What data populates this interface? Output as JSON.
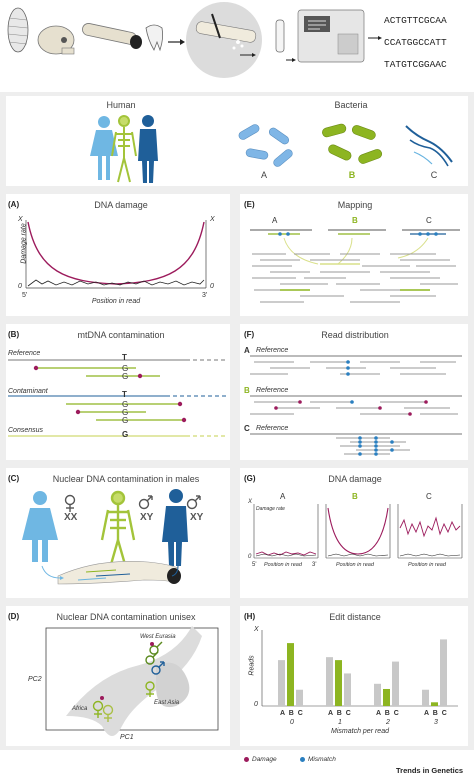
{
  "sequences": [
    "ACTGTTCGCAA",
    "CCATGGCCATT",
    "TATGTCGGAAC"
  ],
  "top": {
    "human_label": "Human",
    "bacteria_label": "Bacteria",
    "bact_a": "A",
    "bact_b": "B",
    "bact_c": "C"
  },
  "panelA": {
    "letter": "(A)",
    "title": "DNA damage",
    "ylabel": "Damage rate",
    "xlabel": "Position in read",
    "x_top_left": "X",
    "x_top_right": "X",
    "zero_left": "0",
    "zero_right": "0",
    "five": "5'",
    "three": "3'"
  },
  "panelE": {
    "letter": "(E)",
    "title": "Mapping",
    "a": "A",
    "b": "B",
    "c": "C"
  },
  "panelB": {
    "letter": "(B)",
    "title": "mtDNA contamination",
    "reference": "Reference",
    "contaminant": "Contaminant",
    "consensus": "Consensus",
    "bases": [
      "T",
      "G",
      "G",
      "T",
      "G",
      "G",
      "G",
      "G"
    ]
  },
  "panelF": {
    "letter": "(F)",
    "title": "Read distribution",
    "a": "A",
    "b": "B",
    "c": "C",
    "reference": "Reference"
  },
  "panelC": {
    "letter": "(C)",
    "title": "Nuclear DNA contamination in males",
    "xx": "XX",
    "xy1": "XY",
    "xy2": "XY"
  },
  "panelG": {
    "letter": "(G)",
    "title": "DNA damage",
    "a": "A",
    "b": "B",
    "c": "C",
    "ylabel": "Damage rate",
    "xlabel": "Position in read",
    "x": "X",
    "zero": "0",
    "five": "5'",
    "three": "3'"
  },
  "panelD": {
    "letter": "(D)",
    "title": "Nuclear DNA contamination unisex",
    "west_eurasia": "West Eurasia",
    "africa": "Africa",
    "east_asia": "East Asia",
    "pc1": "PC1",
    "pc2": "PC2"
  },
  "panelH": {
    "letter": "(H)",
    "title": "Edit distance",
    "ylabel": "Reads",
    "x": "X",
    "zero": "0",
    "xlabel": "Mismatch per read",
    "group_labels": [
      "0",
      "1",
      "2",
      "3"
    ],
    "abc": "A B C"
  },
  "chart_data": {
    "type": "bar",
    "categories": [
      "0",
      "1",
      "2",
      "3"
    ],
    "series": [
      {
        "name": "A",
        "values": [
          0.62,
          0.66,
          0.3,
          0.22
        ]
      },
      {
        "name": "B",
        "values": [
          0.85,
          0.62,
          0.23,
          0.05
        ]
      },
      {
        "name": "C",
        "values": [
          0.22,
          0.44,
          0.6,
          0.9
        ]
      }
    ],
    "ylim": [
      0,
      1
    ],
    "xlabel": "Mismatch per read",
    "ylabel": "Reads"
  },
  "legend": {
    "damage": "Damage",
    "mismatch": "Mismatch"
  },
  "brand": "Trends in Genetics",
  "colors": {
    "damage": "#9c1b5c",
    "mismatch": "#2a7fc0",
    "green": "#8db521",
    "blue": "#1f5f99",
    "lightblue": "#67b3e0",
    "bact_blue": "#7fb6e6",
    "grey": "#c8c8c8"
  }
}
